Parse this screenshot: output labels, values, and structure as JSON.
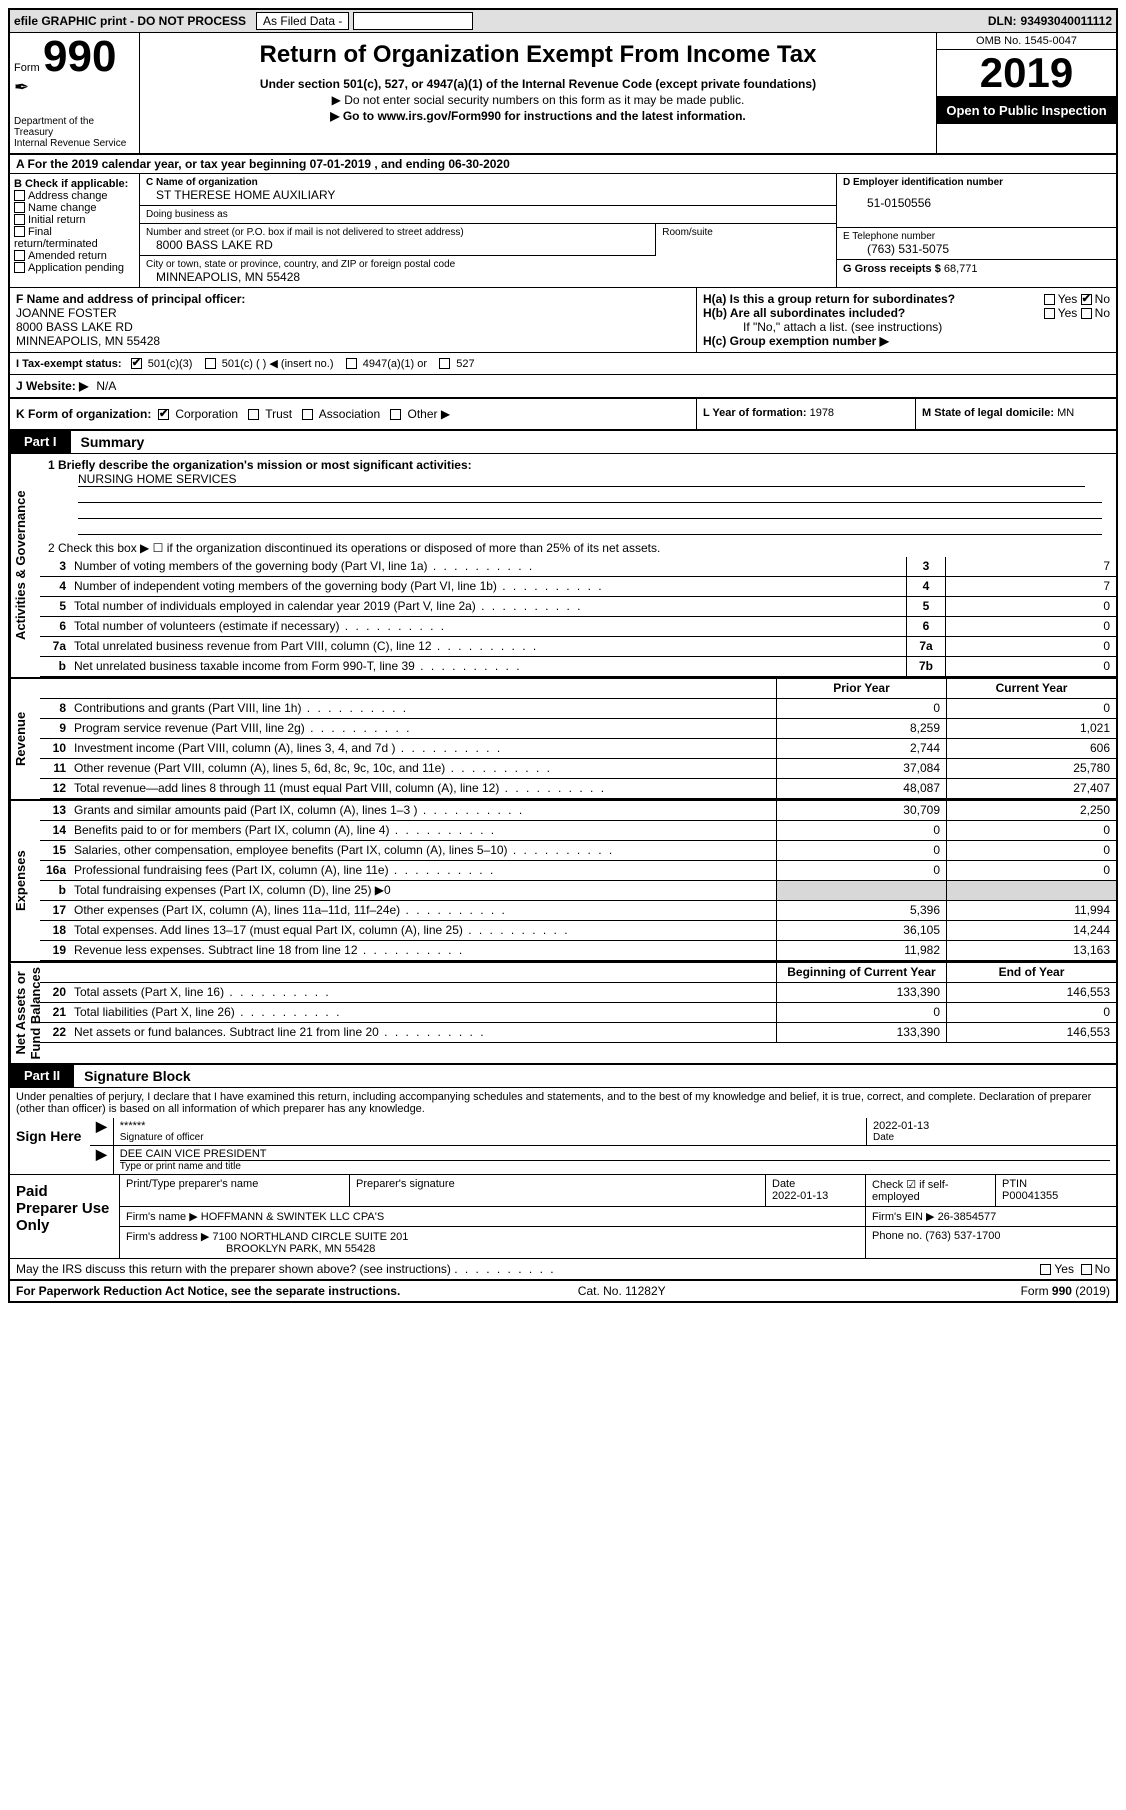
{
  "top": {
    "efile": "efile GRAPHIC print - DO NOT PROCESS",
    "asfiled": "As Filed Data -",
    "dln_lbl": "DLN:",
    "dln": "93493040011112"
  },
  "hdr": {
    "form": "Form",
    "num": "990",
    "dept": "Department of the Treasury\nInternal Revenue Service",
    "title": "Return of Organization Exempt From Income Tax",
    "sub1": "Under section 501(c), 527, or 4947(a)(1) of the Internal Revenue Code (except private foundations)",
    "sub2": "▶ Do not enter social security numbers on this form as it may be made public.",
    "sub3": "▶ Go to www.irs.gov/Form990 for instructions and the latest information.",
    "omb": "OMB No. 1545-0047",
    "year": "2019",
    "open": "Open to Public Inspection"
  },
  "rowA": "A  For the 2019 calendar year, or tax year beginning 07-01-2019   , and ending 06-30-2020",
  "B": {
    "lbl": "B Check if applicable:",
    "items": [
      "Address change",
      "Name change",
      "Initial return",
      "Final return/terminated",
      "Amended return",
      "Application pending"
    ]
  },
  "C": {
    "lbl": "C Name of organization",
    "val": "ST THERESE HOME AUXILIARY",
    "dba_lbl": "Doing business as",
    "dba": ""
  },
  "addr": {
    "street_lbl": "Number and street (or P.O. box if mail is not delivered to street address)",
    "room_lbl": "Room/suite",
    "street": "8000 BASS LAKE RD",
    "city_lbl": "City or town, state or province, country, and ZIP or foreign postal code",
    "city": "MINNEAPOLIS, MN  55428"
  },
  "D": {
    "lbl": "D Employer identification number",
    "val": "51-0150556"
  },
  "E": {
    "lbl": "E Telephone number",
    "val": "(763) 531-5075"
  },
  "G": {
    "lbl": "G Gross receipts $",
    "val": "68,771"
  },
  "F": {
    "lbl": "F  Name and address of principal officer:",
    "name": "JOANNE FOSTER",
    "street": "8000 BASS LAKE RD",
    "city": "MINNEAPOLIS, MN  55428"
  },
  "H": {
    "a": "H(a)  Is this a group return for subordinates?",
    "b": "H(b)  Are all subordinates included?",
    "note": "If \"No,\" attach a list. (see instructions)",
    "c": "H(c)  Group exemption number ▶",
    "yes": "Yes",
    "no": "No"
  },
  "I": {
    "lbl": "I  Tax-exempt status:",
    "o1": "501(c)(3)",
    "o2": "501(c) (  ) ◀ (insert no.)",
    "o3": "4947(a)(1) or",
    "o4": "527"
  },
  "J": {
    "lbl": "J  Website: ▶",
    "val": "N/A"
  },
  "K": {
    "lbl": "K Form of organization:",
    "o1": "Corporation",
    "o2": "Trust",
    "o3": "Association",
    "o4": "Other ▶"
  },
  "L": {
    "lbl": "L Year of formation:",
    "val": "1978"
  },
  "M": {
    "lbl": "M State of legal domicile:",
    "val": "MN"
  },
  "part1": {
    "tab": "Part I",
    "title": "Summary"
  },
  "mission": {
    "line1_lbl": "1 Briefly describe the organization's mission or most significant activities:",
    "line1": "NURSING HOME SERVICES"
  },
  "checkbox2": "2  Check this box ▶ ☐ if the organization discontinued its operations or disposed of more than 25% of its net assets.",
  "govRows": [
    {
      "n": "3",
      "t": "Number of voting members of the governing body (Part VI, line 1a)",
      "k": "3",
      "v": "7"
    },
    {
      "n": "4",
      "t": "Number of independent voting members of the governing body (Part VI, line 1b)",
      "k": "4",
      "v": "7"
    },
    {
      "n": "5",
      "t": "Total number of individuals employed in calendar year 2019 (Part V, line 2a)",
      "k": "5",
      "v": "0"
    },
    {
      "n": "6",
      "t": "Total number of volunteers (estimate if necessary)",
      "k": "6",
      "v": "0"
    },
    {
      "n": "7a",
      "t": "Total unrelated business revenue from Part VIII, column (C), line 12",
      "k": "7a",
      "v": "0"
    },
    {
      "n": "b",
      "t": "Net unrelated business taxable income from Form 990-T, line 39",
      "k": "7b",
      "v": "0"
    }
  ],
  "colHdr1": "Prior Year",
  "colHdr2": "Current Year",
  "revRows": [
    {
      "n": "8",
      "t": "Contributions and grants (Part VIII, line 1h)",
      "p": "0",
      "c": "0"
    },
    {
      "n": "9",
      "t": "Program service revenue (Part VIII, line 2g)",
      "p": "8,259",
      "c": "1,021"
    },
    {
      "n": "10",
      "t": "Investment income (Part VIII, column (A), lines 3, 4, and 7d )",
      "p": "2,744",
      "c": "606"
    },
    {
      "n": "11",
      "t": "Other revenue (Part VIII, column (A), lines 5, 6d, 8c, 9c, 10c, and 11e)",
      "p": "37,084",
      "c": "25,780"
    },
    {
      "n": "12",
      "t": "Total revenue—add lines 8 through 11 (must equal Part VIII, column (A), line 12)",
      "p": "48,087",
      "c": "27,407"
    }
  ],
  "expRows": [
    {
      "n": "13",
      "t": "Grants and similar amounts paid (Part IX, column (A), lines 1–3 )",
      "p": "30,709",
      "c": "2,250"
    },
    {
      "n": "14",
      "t": "Benefits paid to or for members (Part IX, column (A), line 4)",
      "p": "0",
      "c": "0"
    },
    {
      "n": "15",
      "t": "Salaries, other compensation, employee benefits (Part IX, column (A), lines 5–10)",
      "p": "0",
      "c": "0"
    },
    {
      "n": "16a",
      "t": "Professional fundraising fees (Part IX, column (A), line 11e)",
      "p": "0",
      "c": "0"
    },
    {
      "n": "b",
      "t": "Total fundraising expenses (Part IX, column (D), line 25) ▶0",
      "p": "",
      "c": "",
      "gray": true
    },
    {
      "n": "17",
      "t": "Other expenses (Part IX, column (A), lines 11a–11d, 11f–24e)",
      "p": "5,396",
      "c": "11,994"
    },
    {
      "n": "18",
      "t": "Total expenses. Add lines 13–17 (must equal Part IX, column (A), line 25)",
      "p": "36,105",
      "c": "14,244"
    },
    {
      "n": "19",
      "t": "Revenue less expenses. Subtract line 18 from line 12",
      "p": "11,982",
      "c": "13,163"
    }
  ],
  "colHdr3": "Beginning of Current Year",
  "colHdr4": "End of Year",
  "netRows": [
    {
      "n": "20",
      "t": "Total assets (Part X, line 16)",
      "p": "133,390",
      "c": "146,553"
    },
    {
      "n": "21",
      "t": "Total liabilities (Part X, line 26)",
      "p": "0",
      "c": "0"
    },
    {
      "n": "22",
      "t": "Net assets or fund balances. Subtract line 21 from line 20",
      "p": "133,390",
      "c": "146,553"
    }
  ],
  "vtabs": {
    "gov": "Activities & Governance",
    "rev": "Revenue",
    "exp": "Expenses",
    "net": "Net Assets or\nFund Balances"
  },
  "part2": {
    "tab": "Part II",
    "title": "Signature Block"
  },
  "sigText": "Under penalties of perjury, I declare that I have examined this return, including accompanying schedules and statements, and to the best of my knowledge and belief, it is true, correct, and complete. Declaration of preparer (other than officer) is based on all information of which preparer has any knowledge.",
  "sign": {
    "lbl": "Sign Here",
    "stars": "******",
    "sig_lbl": "Signature of officer",
    "date": "2022-01-13",
    "date_lbl": "Date",
    "name": "DEE CAIN  VICE PRESIDENT",
    "name_lbl": "Type or print name and title"
  },
  "prep": {
    "lbl": "Paid Preparer Use Only",
    "h1": "Print/Type preparer's name",
    "h2": "Preparer's signature",
    "h3": "Date",
    "h3v": "2022-01-13",
    "h4": "Check ☑ if self-employed",
    "h5": "PTIN",
    "h5v": "P00041355",
    "firm_lbl": "Firm's name   ▶",
    "firm": "HOFFMANN & SWINTEK LLC CPA'S",
    "ein_lbl": "Firm's EIN ▶",
    "ein": "26-3854577",
    "addr_lbl": "Firm's address ▶",
    "addr1": "7100 NORTHLAND CIRCLE SUITE 201",
    "addr2": "BROOKLYN PARK, MN  55428",
    "phone_lbl": "Phone no.",
    "phone": "(763) 537-1700"
  },
  "discuss": "May the IRS discuss this return with the preparer shown above? (see instructions)",
  "foot": {
    "l": "For Paperwork Reduction Act Notice, see the separate instructions.",
    "m": "Cat. No. 11282Y",
    "r": "Form 990 (2019)"
  }
}
